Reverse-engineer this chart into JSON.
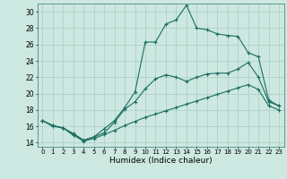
{
  "xlabel": "Humidex (Indice chaleur)",
  "background_color": "#cce8e0",
  "grid_color": "#aaccc4",
  "line_color": "#1a6e60",
  "xlim": [
    -0.5,
    23.5
  ],
  "ylim": [
    13.5,
    31.0
  ],
  "yticks": [
    14,
    16,
    18,
    20,
    22,
    24,
    26,
    28,
    30
  ],
  "xticks": [
    0,
    1,
    2,
    3,
    4,
    5,
    6,
    7,
    8,
    9,
    10,
    11,
    12,
    13,
    14,
    15,
    16,
    17,
    18,
    19,
    20,
    21,
    22,
    23
  ],
  "xtick_labels": [
    "0",
    "1",
    "2",
    "3",
    "4",
    "5",
    "6",
    "7",
    "8",
    "9",
    "10",
    "11",
    "12",
    "13",
    "14",
    "15",
    "16",
    "17",
    "18",
    "19",
    "20",
    "21",
    "22",
    "23"
  ],
  "line_top_x": [
    0,
    1,
    2,
    3,
    4,
    5,
    6,
    7,
    8,
    9,
    10,
    11,
    12,
    13,
    14,
    15,
    16,
    17,
    18,
    19,
    20,
    21,
    22,
    23
  ],
  "line_top_y": [
    16.7,
    16.1,
    15.8,
    15.1,
    14.3,
    14.7,
    15.7,
    16.7,
    18.3,
    20.2,
    26.3,
    26.3,
    28.5,
    29.0,
    30.8,
    28.0,
    27.8,
    27.3,
    27.1,
    27.0,
    25.0,
    24.5,
    19.2,
    18.5
  ],
  "line_mid_x": [
    0,
    1,
    2,
    3,
    4,
    5,
    6,
    7,
    8,
    9,
    10,
    11,
    12,
    13,
    14,
    15,
    16,
    17,
    18,
    19,
    20,
    21,
    22,
    23
  ],
  "line_mid_y": [
    16.7,
    16.1,
    15.8,
    15.1,
    14.3,
    14.7,
    15.2,
    16.5,
    18.1,
    19.0,
    20.6,
    21.8,
    22.3,
    22.0,
    21.5,
    22.0,
    22.4,
    22.5,
    22.5,
    23.0,
    23.8,
    22.0,
    19.0,
    18.5
  ],
  "line_bot_x": [
    0,
    1,
    2,
    3,
    4,
    5,
    6,
    7,
    8,
    9,
    10,
    11,
    12,
    13,
    14,
    15,
    16,
    17,
    18,
    19,
    20,
    21,
    22,
    23
  ],
  "line_bot_y": [
    16.7,
    16.0,
    15.8,
    14.9,
    14.2,
    14.5,
    15.0,
    15.5,
    16.1,
    16.6,
    17.1,
    17.5,
    17.9,
    18.3,
    18.7,
    19.1,
    19.5,
    19.9,
    20.3,
    20.7,
    21.1,
    20.5,
    18.5,
    18.0
  ]
}
